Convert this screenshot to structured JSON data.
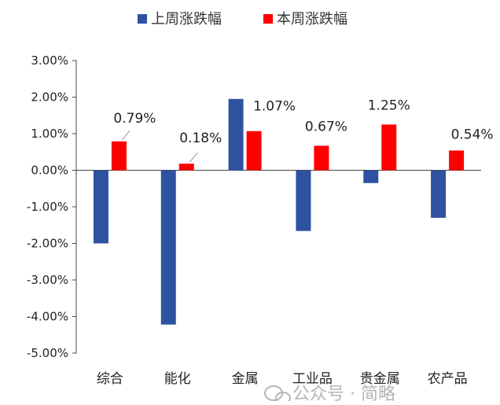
{
  "chart_data": {
    "type": "bar",
    "title": "",
    "xlabel": "",
    "ylabel": "",
    "ylim": [
      -5.0,
      3.0
    ],
    "ytick_step": 1.0,
    "ytick_labels": [
      "3.00%",
      "2.00%",
      "1.00%",
      "0.00%",
      "-1.00%",
      "-2.00%",
      "-3.00%",
      "-4.00%",
      "-5.00%"
    ],
    "categories": [
      "综合",
      "能化",
      "金属",
      "工业品",
      "贵金属",
      "农产品"
    ],
    "series": [
      {
        "name": "上周涨跌幅",
        "color": "#2F52A0",
        "values": [
          -2.0,
          -4.22,
          1.95,
          -1.66,
          -0.35,
          -1.3
        ]
      },
      {
        "name": "本周涨跌幅",
        "color": "#FF0000",
        "values": [
          0.79,
          0.18,
          1.07,
          0.67,
          1.25,
          0.54
        ],
        "data_labels": [
          "0.79%",
          "0.18%",
          "1.07%",
          "0.67%",
          "1.25%",
          "0.54%"
        ]
      }
    ],
    "legend_position": "top-center",
    "grid": false
  },
  "watermark": {
    "text": "公众号 · 简略",
    "icon": "wechat-icon"
  }
}
